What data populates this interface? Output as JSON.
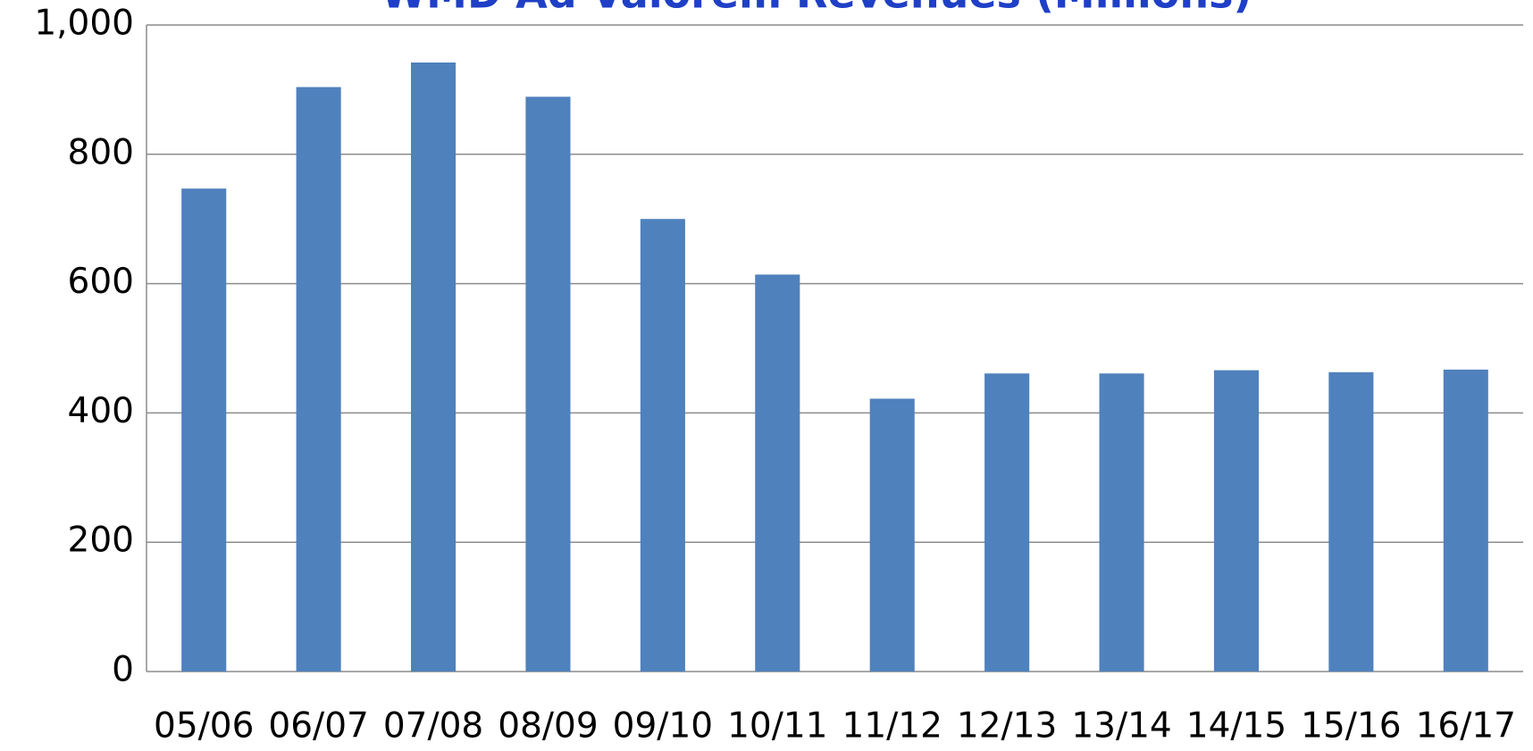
{
  "chart_data": {
    "type": "bar",
    "title": "WMD Ad Valorem Revenues (Millions)",
    "categories": [
      "05/06",
      "06/07",
      "07/08",
      "08/09",
      "09/10",
      "10/11",
      "11/12",
      "12/13",
      "13/14",
      "14/15",
      "15/16",
      "16/17"
    ],
    "values": [
      747,
      904,
      942,
      889,
      700,
      614,
      422,
      461,
      461,
      466,
      463,
      467
    ],
    "color": "#4f81bd",
    "ylim": [
      0,
      1000
    ],
    "yticks": [
      0,
      200,
      400,
      600,
      800,
      {
        "value": 1000,
        "label": "1,000"
      }
    ],
    "grid": true
  }
}
